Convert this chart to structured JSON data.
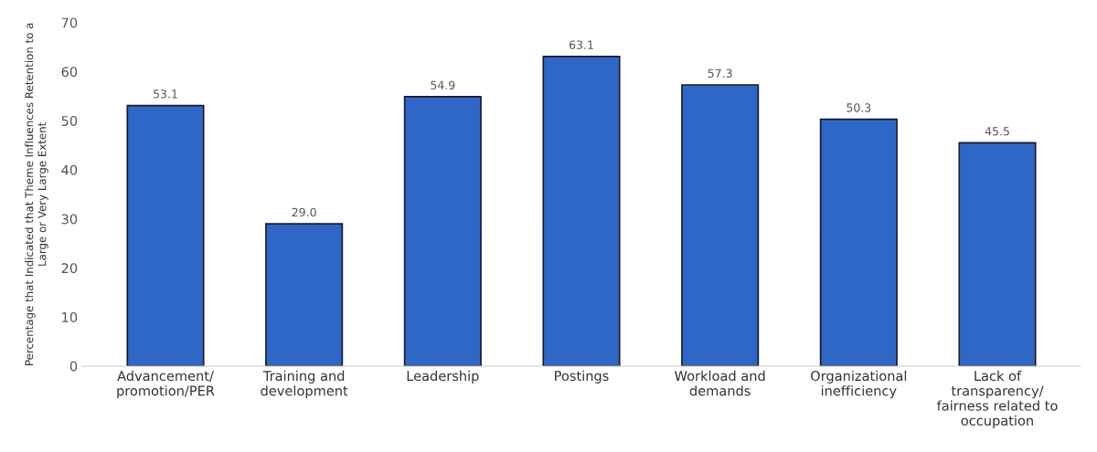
{
  "chart_data": {
    "type": "bar",
    "ylabel": "Percentage that Indicated that Theme Influences Retention to a\nLarge or Very Large Extent",
    "categories": [
      "Advancement/\npromotion/PER",
      "Training and\ndevelopment",
      "Leadership",
      "Postings",
      "Workload and\ndemands",
      "Organizational\ninefficiency",
      "Lack of\ntransparency/\nfairness related to\noccupation"
    ],
    "values": [
      53.1,
      29.0,
      54.9,
      63.1,
      57.3,
      50.3,
      45.5
    ],
    "value_labels": [
      "53.1",
      "29.0",
      "54.9",
      "63.1",
      "57.3",
      "50.3",
      "45.5"
    ],
    "color": "#2f67c6",
    "ylim": [
      0,
      70
    ],
    "yticks": [
      0,
      10,
      20,
      30,
      40,
      50,
      60,
      70
    ],
    "grid": false
  }
}
